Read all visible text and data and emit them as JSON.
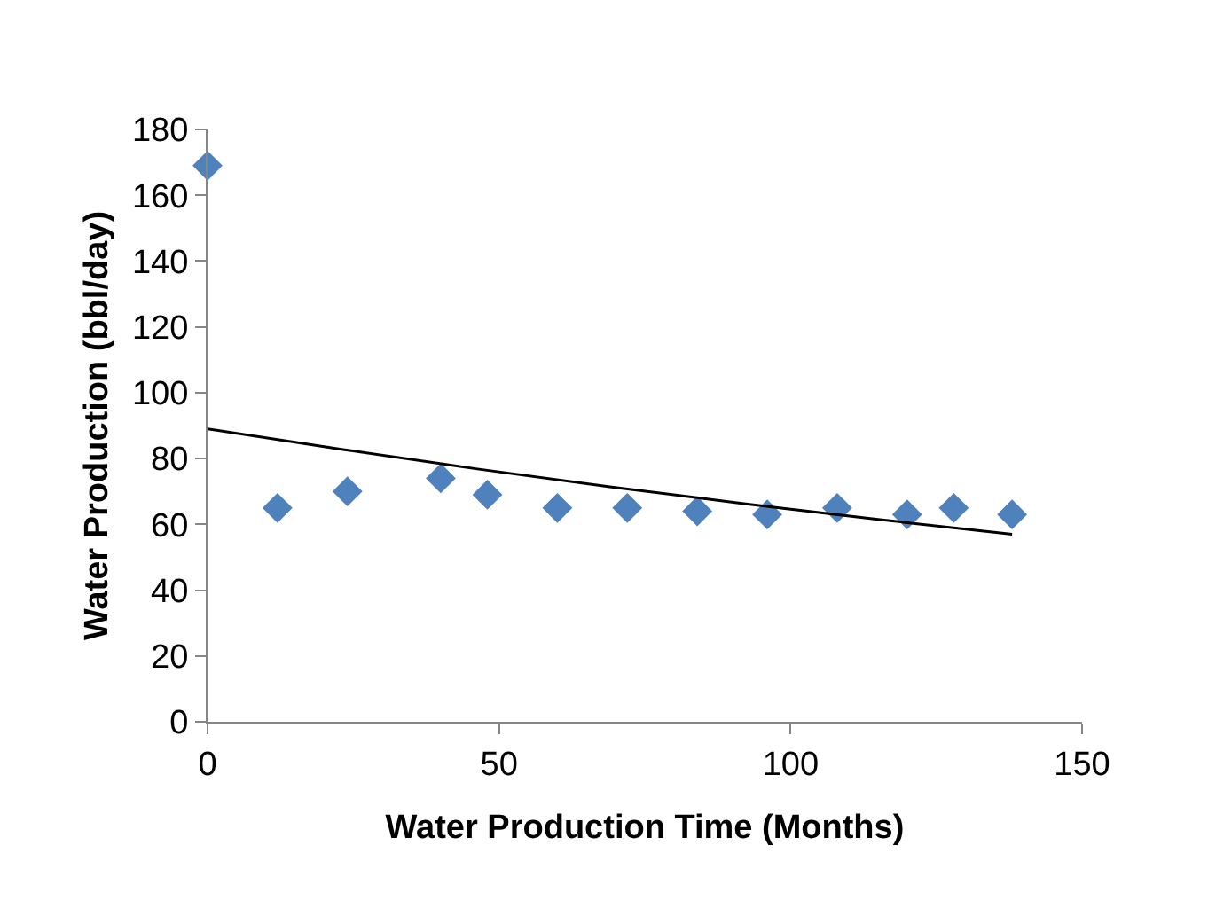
{
  "chart_data": {
    "type": "scatter",
    "xlabel": "Water Production Time (Months)",
    "ylabel": "Water Production (bbl/day)",
    "xlim": [
      0,
      150
    ],
    "xticks": [
      0,
      50,
      100,
      150
    ],
    "ylim": [
      0,
      180
    ],
    "yticks": [
      0,
      20,
      40,
      60,
      80,
      100,
      120,
      140,
      160,
      180
    ],
    "grid": false,
    "series": [
      {
        "marker": "diamond",
        "color": "#4f81bd",
        "x": [
          0,
          12,
          24,
          40,
          48,
          60,
          72,
          84,
          96,
          108,
          120,
          128,
          138
        ],
        "values": [
          169,
          65,
          70,
          74,
          69,
          65,
          65,
          64,
          63,
          65,
          63,
          65,
          63
        ]
      },
      {
        "type": "line",
        "marker": "none",
        "color": "#000000",
        "line_style": "solid",
        "x": [
          0,
          23,
          46,
          69,
          92,
          115,
          138
        ],
        "values": [
          89,
          82.8,
          76.9,
          71.4,
          66.3,
          61.5,
          57
        ]
      }
    ]
  }
}
